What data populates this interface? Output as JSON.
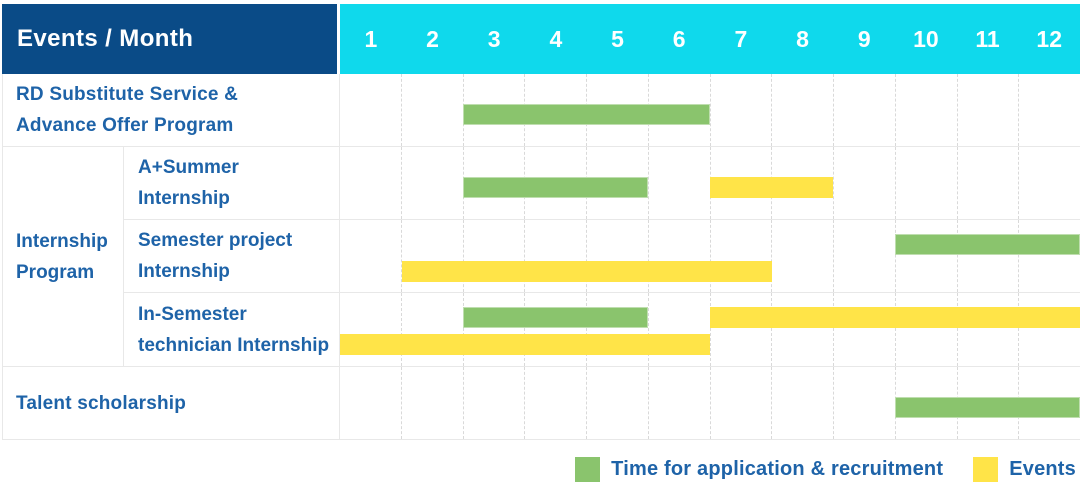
{
  "header": {
    "title": "Events / Month"
  },
  "colors": {
    "header_navy": "#0a4b87",
    "header_cyan": "#0fd9ec",
    "label_blue": "#1e63a8",
    "recruitment_green": "#8ac46d",
    "events_yellow": "#ffe448",
    "grid_solid": "#e8e8e8",
    "grid_dashed": "#d9d9d9"
  },
  "legend": {
    "items": [
      {
        "key": "recruitment",
        "label": "Time for application & recruitment",
        "color": "#8ac46d"
      },
      {
        "key": "events",
        "label": "Events",
        "color": "#ffe448"
      }
    ]
  },
  "chart_data": {
    "type": "gantt",
    "title": "Events / Month",
    "x_categories": [
      "1",
      "2",
      "3",
      "4",
      "5",
      "6",
      "7",
      "8",
      "9",
      "10",
      "11",
      "12"
    ],
    "x_axis": {
      "min": 1,
      "max": 12,
      "unit": "month"
    },
    "groups": {
      "Internship Program": [
        "Internship",
        "Program"
      ]
    },
    "rows": [
      {
        "group": "",
        "label_lines": [
          "RD Substitute Service &",
          "Advance Offer Program"
        ],
        "bars": [
          {
            "series": "recruitment",
            "start": 3,
            "end": 6,
            "track": "center"
          }
        ]
      },
      {
        "group": "Internship Program",
        "label_lines": [
          "A+Summer",
          "Internship"
        ],
        "bars": [
          {
            "series": "recruitment",
            "start": 3,
            "end": 5,
            "track": "center"
          },
          {
            "series": "events",
            "start": 7,
            "end": 8,
            "track": "center"
          }
        ]
      },
      {
        "group": "Internship Program",
        "label_lines": [
          "Semester project",
          "Internship"
        ],
        "bars": [
          {
            "series": "recruitment",
            "start": 10,
            "end": 12,
            "track": "top"
          },
          {
            "series": "events",
            "start": 2,
            "end": 7,
            "track": "bottom"
          }
        ]
      },
      {
        "group": "Internship Program",
        "label_lines": [
          "In-Semester",
          "technician Internship"
        ],
        "bars": [
          {
            "series": "recruitment",
            "start": 3,
            "end": 5,
            "track": "top"
          },
          {
            "series": "events",
            "start": 7,
            "end": 12,
            "track": "top"
          },
          {
            "series": "events",
            "start": 1,
            "end": 6,
            "track": "bottom"
          }
        ]
      },
      {
        "group": "",
        "label_lines": [
          "Talent scholarship"
        ],
        "bars": [
          {
            "series": "recruitment",
            "start": 10,
            "end": 12,
            "track": "center"
          }
        ]
      }
    ],
    "legend": [
      {
        "series": "recruitment",
        "label": "Time for application & recruitment"
      },
      {
        "series": "events",
        "label": "Events"
      }
    ]
  }
}
